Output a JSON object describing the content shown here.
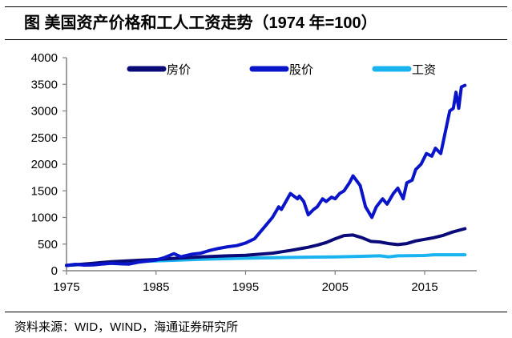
{
  "title": "图  美国资产价格和工人工资走势（1974 年=100）",
  "source": "资料来源：WID，WIND，海通证券研究所",
  "chart_data": {
    "type": "line",
    "title": "图  美国资产价格和工人工资走势（1974 年=100）",
    "xlabel": "",
    "ylabel": "",
    "xlim": [
      1975,
      2020
    ],
    "ylim": [
      0,
      4000
    ],
    "xticks": [
      1975,
      1985,
      1995,
      2005,
      2015
    ],
    "yticks": [
      0,
      500,
      1000,
      1500,
      2000,
      2500,
      3000,
      3500,
      4000
    ],
    "grid": false,
    "legend": "top",
    "series": [
      {
        "name": "房价",
        "color": "#0a0a78",
        "x": [
          1975,
          1978,
          1980,
          1983,
          1985,
          1988,
          1990,
          1993,
          1995,
          1998,
          2000,
          2002,
          2003,
          2004,
          2005,
          2006,
          2007,
          2008,
          2009,
          2010,
          2011,
          2012,
          2013,
          2014,
          2015,
          2016,
          2017,
          2018,
          2019.5
        ],
        "y": [
          100,
          140,
          170,
          195,
          210,
          240,
          260,
          280,
          290,
          330,
          380,
          440,
          480,
          530,
          600,
          660,
          670,
          620,
          550,
          540,
          510,
          490,
          510,
          560,
          590,
          620,
          660,
          720,
          790
        ]
      },
      {
        "name": "股价",
        "color": "#0a14c8",
        "x": [
          1975,
          1976,
          1977,
          1978,
          1980,
          1981,
          1982,
          1983,
          1984,
          1985,
          1986,
          1987,
          1987.8,
          1988,
          1989,
          1990,
          1991,
          1992,
          1993,
          1994,
          1995,
          1996,
          1997,
          1998,
          1998.7,
          1999,
          1999.5,
          2000,
          2000.8,
          2001,
          2001.5,
          2002,
          2002.6,
          2003,
          2003.6,
          2004,
          2004.6,
          2005,
          2005.5,
          2006,
          2006.6,
          2007,
          2007.8,
          2008.4,
          2009.1,
          2009.6,
          2010.3,
          2010.8,
          2011.5,
          2012,
          2012.6,
          2013,
          2013.6,
          2014,
          2014.6,
          2015.2,
          2015.8,
          2016.2,
          2016.8,
          2017.3,
          2017.8,
          2018.2,
          2018.5,
          2018.8,
          2019.1,
          2019.5
        ],
        "y": [
          100,
          120,
          105,
          110,
          140,
          130,
          125,
          160,
          180,
          200,
          250,
          320,
          260,
          270,
          310,
          330,
          380,
          420,
          450,
          470,
          520,
          600,
          800,
          1000,
          1200,
          1150,
          1300,
          1450,
          1350,
          1400,
          1300,
          1050,
          1150,
          1200,
          1350,
          1300,
          1380,
          1350,
          1450,
          1500,
          1650,
          1780,
          1600,
          1200,
          1000,
          1200,
          1350,
          1250,
          1450,
          1550,
          1350,
          1650,
          1700,
          1900,
          2000,
          2200,
          2150,
          2300,
          2200,
          2600,
          3000,
          3050,
          3350,
          3050,
          3450,
          3480
        ]
      },
      {
        "name": "工资",
        "color": "#19b4f0",
        "x": [
          1975,
          1980,
          1985,
          1990,
          1995,
          2000,
          2005,
          2008,
          2010,
          2011,
          2012,
          2015,
          2016,
          2019.5
        ],
        "y": [
          100,
          150,
          185,
          215,
          235,
          250,
          260,
          270,
          280,
          260,
          280,
          285,
          300,
          300
        ]
      }
    ]
  }
}
